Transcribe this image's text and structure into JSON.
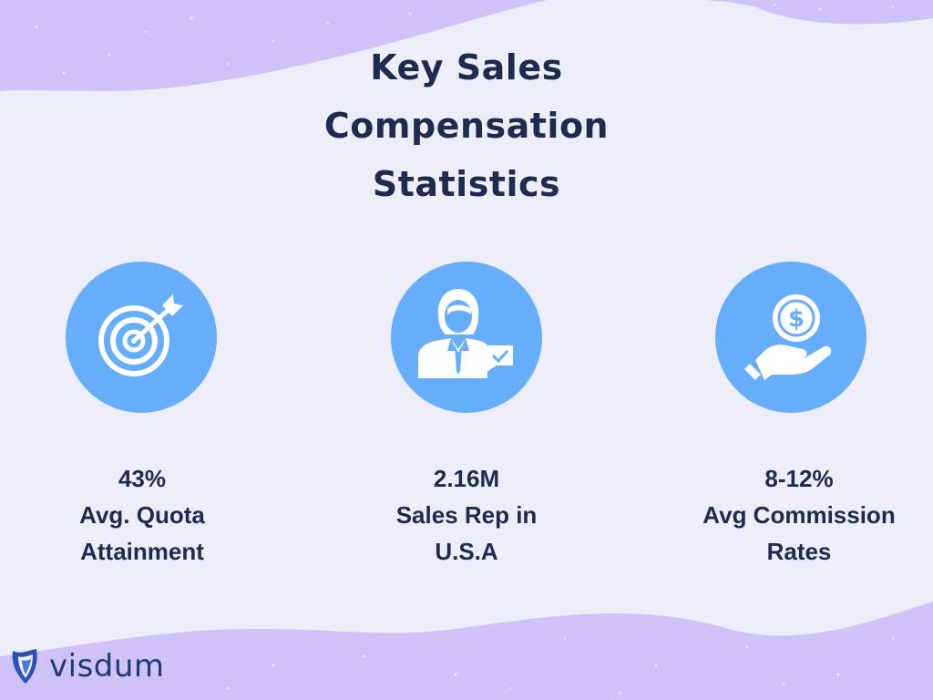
{
  "title": {
    "line1": "Key Sales",
    "line2": "Compensation",
    "line3": "Statistics"
  },
  "stats": [
    {
      "icon": "target-icon",
      "value": "43%",
      "label_line1": "Avg. Quota",
      "label_line2": "Attainment"
    },
    {
      "icon": "sales-rep-icon",
      "value": "2.16M",
      "label_line1": "Sales Rep in",
      "label_line2": "U.S.A"
    },
    {
      "icon": "money-hand-icon",
      "value": "8-12%",
      "label_line1": "Avg Commission",
      "label_line2": "Rates"
    }
  ],
  "logo": {
    "name": "visdum"
  },
  "colors": {
    "background": "#eeeefb",
    "blob": "#cec2f6",
    "circle": "#66adfc",
    "text": "#1f2a4f"
  }
}
